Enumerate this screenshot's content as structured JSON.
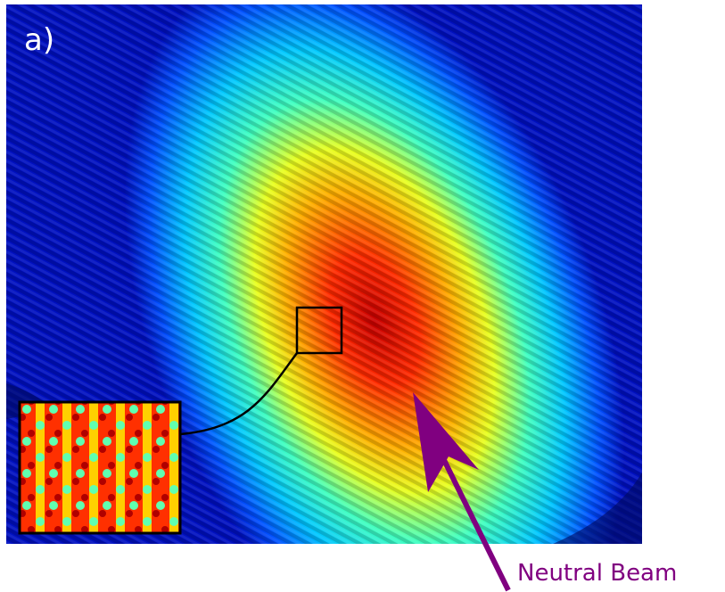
{
  "panel_label": "a)",
  "annotation": "Neutral Beam"
}
